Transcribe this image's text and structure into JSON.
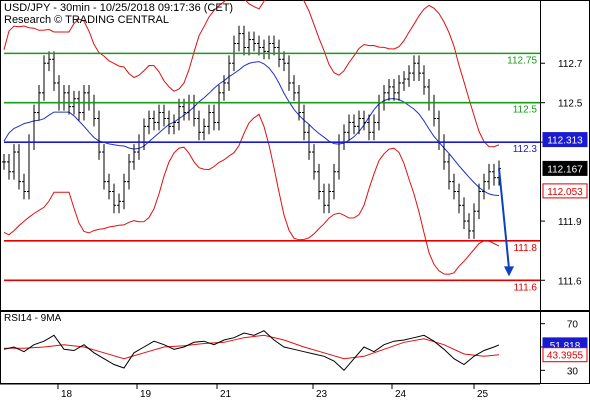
{
  "header": {
    "line1": "USD/JPY - 30min - 10/25/2018 09:17:36 (CET)",
    "line2": "Research © TRADING CENTRAL"
  },
  "colors": {
    "green_level": "#199a19",
    "red_level": "#e00000",
    "pivot": "#1a1ad0",
    "price": "#000000",
    "bollinger": "#e01010",
    "ma": "#2030c8",
    "arrow": "#1040c0",
    "current_box": "#000000",
    "pivot_box": "#1a1ad0",
    "bb_box": "#e00000",
    "rsi_line": "#000000",
    "rsi_signal": "#e01010",
    "rsi_box": "#1a1ad0"
  },
  "chart_data": [
    {
      "type": "line",
      "description_role": "price",
      "ylim": [
        111.5,
        112.98
      ],
      "y_ticks": [
        "112.7",
        "112.5",
        "112.3",
        "111.9",
        "111.6"
      ],
      "x_ticks": [
        "18",
        "19",
        "21",
        "23",
        "24",
        "25"
      ],
      "levels": [
        {
          "value": 112.75,
          "label": "112.75",
          "color": "#199a19"
        },
        {
          "value": 112.5,
          "label": "112.5",
          "color": "#199a19"
        },
        {
          "value": 112.3,
          "label": "112.3",
          "color": "#1a1ad0"
        },
        {
          "value": 111.8,
          "label": "111.8",
          "color": "#e00000"
        },
        {
          "value": 111.6,
          "label": "111.6",
          "color": "#e00000"
        }
      ],
      "markers": [
        {
          "label": "112.313",
          "value": 112.313,
          "style": "pivot"
        },
        {
          "label": "112.167",
          "value": 112.167,
          "style": "current"
        },
        {
          "label": "112.053",
          "value": 112.053,
          "style": "bb"
        }
      ],
      "series": [
        {
          "role": "close",
          "x": [
            0,
            5,
            10,
            15,
            20,
            25,
            30,
            35,
            40,
            45,
            50,
            55,
            60,
            65,
            70,
            75,
            80,
            85,
            90,
            95,
            100,
            105,
            110,
            115,
            120,
            125,
            130,
            135,
            140,
            145,
            150,
            155,
            160,
            165,
            170,
            175,
            180,
            185,
            190,
            195,
            200,
            205,
            210,
            215,
            220,
            225,
            230,
            235,
            240,
            245,
            250,
            255,
            260,
            265,
            270,
            275,
            280,
            285,
            290,
            295,
            300,
            305,
            310,
            315,
            320,
            325,
            330,
            335,
            340,
            345,
            350,
            355,
            360,
            365,
            370,
            375,
            380,
            385,
            390,
            395,
            400,
            405,
            410,
            415,
            420,
            425,
            430,
            435,
            440,
            445,
            450,
            455,
            460,
            465,
            470,
            475,
            480,
            485,
            490,
            495
          ],
          "values": [
            112.2,
            112.15,
            112.25,
            112.1,
            112.05,
            112.3,
            112.45,
            112.55,
            112.7,
            112.72,
            112.6,
            112.5,
            112.55,
            112.48,
            112.52,
            112.45,
            112.55,
            112.5,
            112.42,
            112.25,
            112.1,
            112.05,
            111.98,
            112.0,
            112.1,
            112.2,
            112.25,
            112.3,
            112.38,
            112.42,
            112.4,
            112.45,
            112.42,
            112.38,
            112.4,
            112.48,
            112.45,
            112.5,
            112.42,
            112.35,
            112.38,
            112.45,
            112.4,
            112.55,
            112.6,
            112.7,
            112.8,
            112.85,
            112.78,
            112.82,
            112.8,
            112.78,
            112.76,
            112.8,
            112.78,
            112.72,
            112.7,
            112.6,
            112.55,
            112.45,
            112.35,
            112.25,
            112.15,
            112.05,
            111.98,
            112.05,
            112.15,
            112.3,
            112.35,
            112.4,
            112.38,
            112.42,
            112.4,
            112.35,
            112.4,
            112.5,
            112.55,
            112.58,
            112.55,
            112.6,
            112.62,
            112.65,
            112.7,
            112.65,
            112.58,
            112.5,
            112.42,
            112.3,
            112.2,
            112.1,
            112.05,
            111.98,
            111.9,
            111.85,
            111.95,
            112.05,
            112.1,
            112.15,
            112.12,
            112.167
          ]
        },
        {
          "role": "forecast",
          "x": [
            495,
            505
          ],
          "values": [
            112.167,
            111.62
          ]
        }
      ]
    },
    {
      "type": "line",
      "title": "RSI14 - 9MA",
      "y_ticks": [
        "70",
        "50",
        "30"
      ],
      "ylim": [
        20,
        80
      ],
      "markers": [
        {
          "label": "51.818",
          "value": 51.818,
          "style": "pivot"
        },
        {
          "label": "43.3955",
          "value": 43.3955,
          "style": "bb"
        }
      ],
      "series": [
        {
          "role": "rsi",
          "x": [
            0,
            10,
            20,
            30,
            40,
            50,
            60,
            70,
            80,
            90,
            100,
            110,
            120,
            130,
            140,
            150,
            160,
            170,
            180,
            190,
            200,
            210,
            220,
            230,
            240,
            250,
            260,
            270,
            280,
            290,
            300,
            310,
            320,
            330,
            340,
            350,
            360,
            370,
            380,
            390,
            400,
            410,
            420,
            430,
            440,
            450,
            460,
            470,
            480,
            490,
            495
          ],
          "values": [
            48,
            50,
            46,
            52,
            55,
            60,
            48,
            47,
            52,
            45,
            40,
            35,
            32,
            45,
            50,
            55,
            52,
            48,
            50,
            54,
            55,
            52,
            56,
            58,
            62,
            60,
            64,
            56,
            50,
            48,
            46,
            44,
            42,
            38,
            30,
            40,
            50,
            46,
            52,
            55,
            56,
            58,
            60,
            55,
            48,
            40,
            35,
            42,
            47,
            50,
            51.818
          ]
        },
        {
          "role": "signal",
          "x": [
            0,
            20,
            40,
            60,
            80,
            100,
            120,
            140,
            160,
            180,
            200,
            220,
            240,
            260,
            280,
            300,
            320,
            340,
            360,
            380,
            400,
            420,
            440,
            460,
            480,
            495
          ],
          "values": [
            49,
            49,
            50,
            52,
            50,
            45,
            40,
            45,
            50,
            51,
            53,
            54,
            58,
            60,
            56,
            50,
            45,
            40,
            42,
            48,
            54,
            57,
            52,
            44,
            42,
            43.3955
          ]
        }
      ]
    }
  ]
}
